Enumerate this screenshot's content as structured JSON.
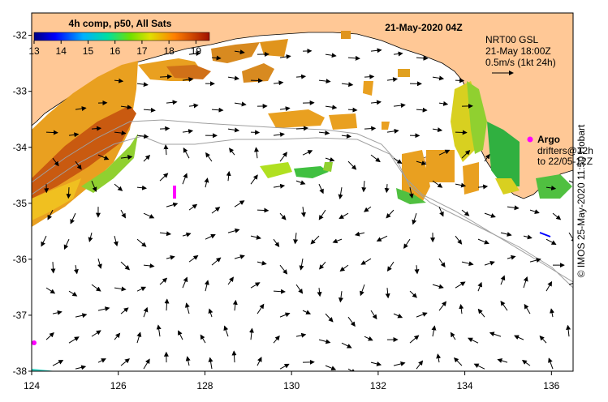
{
  "map": {
    "title": "21-May-2020 04Z",
    "colorbar_title": "4h comp, p50, All Sats",
    "colorbar_ticks": [
      "13",
      "14",
      "15",
      "16",
      "17",
      "18",
      "19"
    ],
    "colorbar_range": [
      13,
      19.5
    ],
    "x_ticks": [
      "124",
      "126",
      "128",
      "130",
      "132",
      "134",
      "136"
    ],
    "y_ticks": [
      "-32",
      "-33",
      "-34",
      "-35",
      "-36",
      "-37",
      "-38"
    ],
    "x_range": [
      124,
      136.5
    ],
    "y_range": [
      -31.6,
      -38
    ],
    "current_legend": {
      "line1": "NRT00 GSL",
      "line2": "21-May 18:00Z",
      "line3": "0.5m/s (1kt 24h)"
    },
    "argo_legend": {
      "label": "Argo",
      "drifters1": "drifters@12h",
      "drifters2": "to 22/05-12Z"
    },
    "credit": "© IMOS 25-May-2020 11:50 Hobart",
    "colors": {
      "land": "#ffc896",
      "argo": "#ff00ff",
      "frame": "#000000"
    }
  }
}
